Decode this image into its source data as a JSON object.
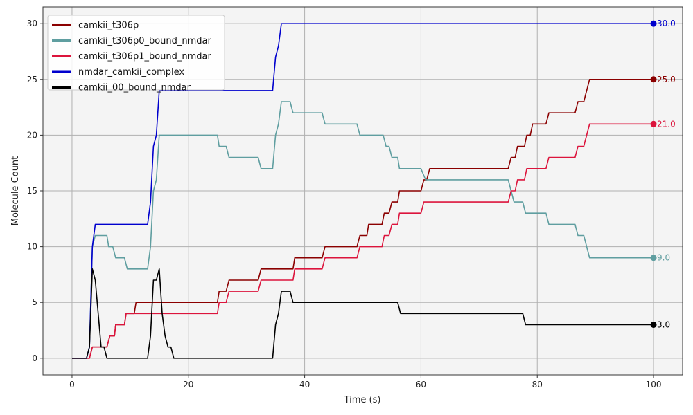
{
  "chart_data": {
    "type": "line",
    "title": "",
    "xlabel": "Time (s)",
    "ylabel": "Molecule Count",
    "xlim": [
      -5,
      105
    ],
    "ylim": [
      -1.5,
      31.5
    ],
    "xticks": [
      0,
      20,
      40,
      60,
      80,
      100
    ],
    "yticks": [
      0,
      5,
      10,
      15,
      20,
      25,
      30
    ],
    "grid": true,
    "legend_position": "top-left",
    "series": [
      {
        "name": "camkii_t306p",
        "color": "#8b0000",
        "end_label": "25.0",
        "points": [
          [
            0,
            0
          ],
          [
            3,
            0
          ],
          [
            3.5,
            1
          ],
          [
            6,
            1
          ],
          [
            6.5,
            2
          ],
          [
            7.3,
            2
          ],
          [
            7.5,
            3
          ],
          [
            9,
            3
          ],
          [
            9.3,
            4
          ],
          [
            10.7,
            4
          ],
          [
            11,
            5
          ],
          [
            25,
            5
          ],
          [
            25.3,
            6
          ],
          [
            26.5,
            6
          ],
          [
            27,
            7
          ],
          [
            32,
            7
          ],
          [
            32.5,
            8
          ],
          [
            38,
            8
          ],
          [
            38.3,
            9
          ],
          [
            43,
            9
          ],
          [
            43.5,
            10
          ],
          [
            49,
            10
          ],
          [
            49.5,
            11
          ],
          [
            50.7,
            11
          ],
          [
            51,
            12
          ],
          [
            53.3,
            12
          ],
          [
            53.7,
            13
          ],
          [
            54.5,
            13
          ],
          [
            55,
            14
          ],
          [
            56,
            14
          ],
          [
            56.3,
            15
          ],
          [
            60,
            15
          ],
          [
            60.5,
            16
          ],
          [
            61,
            16
          ],
          [
            61.5,
            17
          ],
          [
            75,
            17
          ],
          [
            75.5,
            18
          ],
          [
            76.2,
            18
          ],
          [
            76.6,
            19
          ],
          [
            77.8,
            19
          ],
          [
            78.2,
            20
          ],
          [
            78.8,
            20
          ],
          [
            79.2,
            21
          ],
          [
            81.5,
            21
          ],
          [
            82,
            22
          ],
          [
            86.5,
            22
          ],
          [
            87,
            23
          ],
          [
            88,
            23
          ],
          [
            89,
            25
          ],
          [
            100,
            25
          ]
        ]
      },
      {
        "name": "camkii_t306p0_bound_nmdar",
        "color": "#5f9ea0",
        "end_label": "9.0",
        "points": [
          [
            0,
            0
          ],
          [
            2.5,
            0
          ],
          [
            3,
            1
          ],
          [
            3.5,
            10
          ],
          [
            4,
            11
          ],
          [
            6,
            11
          ],
          [
            6.3,
            10
          ],
          [
            7,
            10
          ],
          [
            7.5,
            9
          ],
          [
            9,
            9
          ],
          [
            9.5,
            8
          ],
          [
            13,
            8
          ],
          [
            13.5,
            10
          ],
          [
            14,
            15
          ],
          [
            14.5,
            16
          ],
          [
            15,
            20
          ],
          [
            25,
            20
          ],
          [
            25.3,
            19
          ],
          [
            26.5,
            19
          ],
          [
            27,
            18
          ],
          [
            32,
            18
          ],
          [
            32.5,
            17
          ],
          [
            34.5,
            17
          ],
          [
            35,
            20
          ],
          [
            35.5,
            21
          ],
          [
            36,
            23
          ],
          [
            37.5,
            23
          ],
          [
            38,
            22
          ],
          [
            43,
            22
          ],
          [
            43.5,
            21
          ],
          [
            49,
            21
          ],
          [
            49.5,
            20
          ],
          [
            53.5,
            20
          ],
          [
            54,
            19
          ],
          [
            54.5,
            19
          ],
          [
            55,
            18
          ],
          [
            56,
            18
          ],
          [
            56.3,
            17
          ],
          [
            60,
            17
          ],
          [
            60.8,
            16
          ],
          [
            75,
            16
          ],
          [
            75.5,
            15
          ],
          [
            76,
            14
          ],
          [
            77.5,
            14
          ],
          [
            78,
            13
          ],
          [
            81.5,
            13
          ],
          [
            82,
            12
          ],
          [
            86.5,
            12
          ],
          [
            87,
            11
          ],
          [
            88,
            11
          ],
          [
            89,
            9
          ],
          [
            100,
            9
          ]
        ]
      },
      {
        "name": "camkii_t306p1_bound_nmdar",
        "color": "#dc143c",
        "end_label": "21.0",
        "points": [
          [
            0,
            0
          ],
          [
            3,
            0
          ],
          [
            3.5,
            1
          ],
          [
            6,
            1
          ],
          [
            6.5,
            2
          ],
          [
            7.3,
            2
          ],
          [
            7.5,
            3
          ],
          [
            9,
            3
          ],
          [
            9.3,
            4
          ],
          [
            25,
            4
          ],
          [
            25.3,
            5
          ],
          [
            26.5,
            5
          ],
          [
            27,
            6
          ],
          [
            32,
            6
          ],
          [
            32.5,
            7
          ],
          [
            38,
            7
          ],
          [
            38.3,
            8
          ],
          [
            43,
            8
          ],
          [
            43.5,
            9
          ],
          [
            49,
            9
          ],
          [
            49.5,
            10
          ],
          [
            53.3,
            10
          ],
          [
            53.7,
            11
          ],
          [
            54.5,
            11
          ],
          [
            55,
            12
          ],
          [
            56,
            12
          ],
          [
            56.3,
            13
          ],
          [
            60,
            13
          ],
          [
            60.5,
            14
          ],
          [
            75,
            14
          ],
          [
            75.5,
            15
          ],
          [
            76.2,
            15
          ],
          [
            76.6,
            16
          ],
          [
            77.8,
            16
          ],
          [
            78.2,
            17
          ],
          [
            81.5,
            17
          ],
          [
            82,
            18
          ],
          [
            86.5,
            18
          ],
          [
            87,
            19
          ],
          [
            88,
            19
          ],
          [
            89,
            21
          ],
          [
            100,
            21
          ]
        ]
      },
      {
        "name": "nmdar_camkii_complex",
        "color": "#0000cd",
        "end_label": "30.0",
        "points": [
          [
            0,
            0
          ],
          [
            2.5,
            0
          ],
          [
            3,
            1
          ],
          [
            3.5,
            10
          ],
          [
            4,
            12
          ],
          [
            13,
            12
          ],
          [
            13.5,
            14
          ],
          [
            14,
            19
          ],
          [
            14.5,
            20
          ],
          [
            15,
            24
          ],
          [
            34.5,
            24
          ],
          [
            35,
            27
          ],
          [
            35.5,
            28
          ],
          [
            36,
            30
          ],
          [
            100,
            30
          ]
        ]
      },
      {
        "name": "camkii_00_bound_nmdar",
        "color": "#000000",
        "end_label": "3.0",
        "points": [
          [
            0,
            0
          ],
          [
            2.5,
            0
          ],
          [
            3,
            1
          ],
          [
            3.5,
            8
          ],
          [
            4,
            7
          ],
          [
            4.5,
            4
          ],
          [
            5,
            1
          ],
          [
            5.5,
            1
          ],
          [
            6,
            0
          ],
          [
            13,
            0
          ],
          [
            13.5,
            2
          ],
          [
            14,
            7
          ],
          [
            14.5,
            7
          ],
          [
            15,
            8
          ],
          [
            15.5,
            4
          ],
          [
            16,
            2
          ],
          [
            16.5,
            1
          ],
          [
            17,
            1
          ],
          [
            17.5,
            0
          ],
          [
            34.5,
            0
          ],
          [
            35,
            3
          ],
          [
            35.5,
            4
          ],
          [
            36,
            6
          ],
          [
            37.5,
            6
          ],
          [
            38,
            5
          ],
          [
            56,
            5
          ],
          [
            56.5,
            4
          ],
          [
            77.5,
            4
          ],
          [
            78,
            3
          ],
          [
            100,
            3
          ]
        ]
      }
    ]
  }
}
